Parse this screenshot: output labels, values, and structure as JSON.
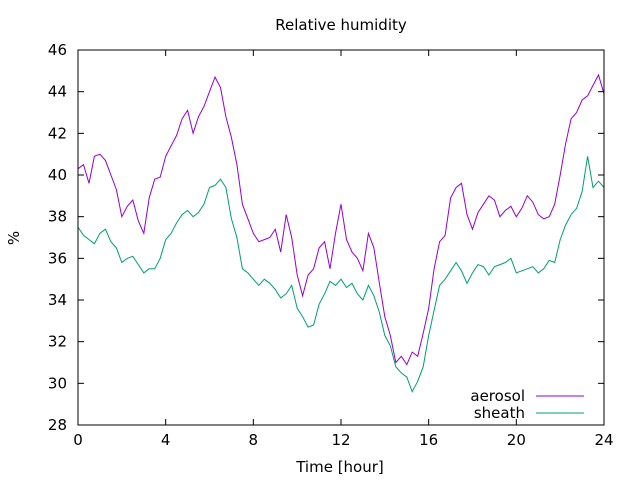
{
  "chart_data": {
    "type": "line",
    "title": "Relative humidity",
    "xlabel": "Time [hour]",
    "ylabel": "%",
    "xlim": [
      0,
      24
    ],
    "ylim": [
      28,
      46
    ],
    "xticks": [
      0,
      4,
      8,
      12,
      16,
      20,
      24
    ],
    "yticks": [
      28,
      30,
      32,
      34,
      36,
      38,
      40,
      42,
      44,
      46
    ],
    "grid": false,
    "legend_position": "bottom-right",
    "series": [
      {
        "name": "aerosol",
        "color": "#9400d3",
        "x": [
          0,
          0.25,
          0.5,
          0.75,
          1,
          1.25,
          1.5,
          1.75,
          2,
          2.25,
          2.5,
          2.75,
          3,
          3.25,
          3.5,
          3.75,
          4,
          4.25,
          4.5,
          4.75,
          5,
          5.25,
          5.5,
          5.75,
          6,
          6.25,
          6.5,
          6.75,
          7,
          7.25,
          7.5,
          7.75,
          8,
          8.25,
          8.5,
          8.75,
          9,
          9.25,
          9.5,
          9.75,
          10,
          10.25,
          10.5,
          10.75,
          11,
          11.25,
          11.5,
          11.75,
          12,
          12.25,
          12.5,
          12.75,
          13,
          13.25,
          13.5,
          13.75,
          14,
          14.25,
          14.5,
          14.75,
          15,
          15.25,
          15.5,
          15.75,
          16,
          16.25,
          16.5,
          16.75,
          17,
          17.25,
          17.5,
          17.75,
          18,
          18.25,
          18.5,
          18.75,
          19,
          19.25,
          19.5,
          19.75,
          20,
          20.25,
          20.5,
          20.75,
          21,
          21.25,
          21.5,
          21.75,
          22,
          22.25,
          22.5,
          22.75,
          23,
          23.25,
          23.5,
          23.75,
          24
        ],
        "y": [
          40.3,
          40.5,
          39.6,
          40.9,
          41.0,
          40.7,
          40.0,
          39.3,
          38.0,
          38.5,
          38.8,
          37.8,
          37.2,
          38.9,
          39.8,
          39.9,
          40.9,
          41.4,
          41.9,
          42.7,
          43.1,
          42.0,
          42.8,
          43.3,
          44.0,
          44.7,
          44.2,
          42.8,
          41.8,
          40.5,
          38.6,
          37.9,
          37.2,
          36.8,
          36.9,
          37.0,
          37.4,
          36.3,
          38.1,
          37.0,
          35.2,
          34.2,
          35.2,
          35.5,
          36.5,
          36.8,
          35.5,
          37.2,
          38.6,
          36.9,
          36.3,
          36.0,
          35.4,
          37.2,
          36.5,
          34.8,
          33.2,
          32.3,
          31.0,
          31.3,
          30.9,
          31.5,
          31.3,
          32.4,
          33.6,
          35.5,
          36.8,
          37.1,
          38.9,
          39.4,
          39.6,
          38.1,
          37.4,
          38.2,
          38.6,
          39.0,
          38.8,
          38.0,
          38.3,
          38.5,
          38.0,
          38.4,
          39.0,
          38.7,
          38.1,
          37.9,
          38.0,
          38.6,
          40.0,
          41.5,
          42.7,
          43.0,
          43.6,
          43.8,
          44.3,
          44.8,
          43.9
        ]
      },
      {
        "name": "sheath",
        "color": "#009e73",
        "x": [
          0,
          0.25,
          0.5,
          0.75,
          1,
          1.25,
          1.5,
          1.75,
          2,
          2.25,
          2.5,
          2.75,
          3,
          3.25,
          3.5,
          3.75,
          4,
          4.25,
          4.5,
          4.75,
          5,
          5.25,
          5.5,
          5.75,
          6,
          6.25,
          6.5,
          6.75,
          7,
          7.25,
          7.5,
          7.75,
          8,
          8.25,
          8.5,
          8.75,
          9,
          9.25,
          9.5,
          9.75,
          10,
          10.25,
          10.5,
          10.75,
          11,
          11.25,
          11.5,
          11.75,
          12,
          12.25,
          12.5,
          12.75,
          13,
          13.25,
          13.5,
          13.75,
          14,
          14.25,
          14.5,
          14.75,
          15,
          15.25,
          15.5,
          15.75,
          16,
          16.25,
          16.5,
          16.75,
          17,
          17.25,
          17.5,
          17.75,
          18,
          18.25,
          18.5,
          18.75,
          19,
          19.25,
          19.5,
          19.75,
          20,
          20.25,
          20.5,
          20.75,
          21,
          21.25,
          21.5,
          21.75,
          22,
          22.25,
          22.5,
          22.75,
          23,
          23.25,
          23.5,
          23.75,
          24
        ],
        "y": [
          37.5,
          37.1,
          36.9,
          36.7,
          37.2,
          37.4,
          36.8,
          36.5,
          35.8,
          36.0,
          36.1,
          35.7,
          35.3,
          35.5,
          35.5,
          36.0,
          36.9,
          37.2,
          37.7,
          38.1,
          38.3,
          38.0,
          38.2,
          38.6,
          39.4,
          39.5,
          39.8,
          39.4,
          37.9,
          37.0,
          35.5,
          35.3,
          35.0,
          34.7,
          35.0,
          34.8,
          34.5,
          34.1,
          34.3,
          34.7,
          33.6,
          33.2,
          32.7,
          32.8,
          33.8,
          34.3,
          34.9,
          34.7,
          35.0,
          34.6,
          34.8,
          34.3,
          34.0,
          34.7,
          34.2,
          33.4,
          32.3,
          31.8,
          30.8,
          30.5,
          30.3,
          29.6,
          30.1,
          30.8,
          32.3,
          33.5,
          34.7,
          35.0,
          35.4,
          35.8,
          35.4,
          34.8,
          35.3,
          35.7,
          35.6,
          35.2,
          35.6,
          35.7,
          35.8,
          36.0,
          35.3,
          35.4,
          35.5,
          35.6,
          35.3,
          35.5,
          35.9,
          35.8,
          36.9,
          37.6,
          38.1,
          38.4,
          39.2,
          40.9,
          39.4,
          39.7,
          39.4
        ]
      }
    ]
  }
}
